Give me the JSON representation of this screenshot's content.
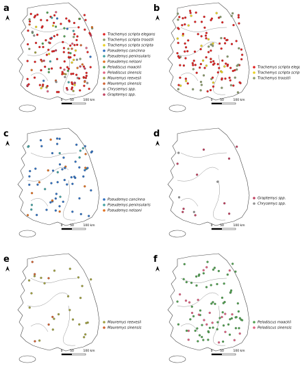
{
  "panels": [
    {
      "label": "a",
      "scale": [
        "0",
        "50",
        "100 km"
      ],
      "legend": [
        {
          "name": "Trachemys scripta elegans",
          "color": "#e02020"
        },
        {
          "name": "Trachemys scripta troostii",
          "color": "#8a9a6a"
        },
        {
          "name": "Trachemys scripta scripta",
          "color": "#e8d020"
        },
        {
          "name": "Pseudemys concinna",
          "color": "#3070c0"
        },
        {
          "name": "Pseudemys peninsularis",
          "color": "#40a0a0"
        },
        {
          "name": "Pseudemys nelsoni",
          "color": "#e07020"
        },
        {
          "name": "Pelodiscus maackii",
          "color": "#50a050"
        },
        {
          "name": "Pelodiscus sinensis",
          "color": "#e06080"
        },
        {
          "name": "Mauremys reevesii",
          "color": "#a0a040"
        },
        {
          "name": "Mauremys sinensis",
          "color": "#d06030"
        },
        {
          "name": "Chrysemys spp.",
          "color": "#909090"
        },
        {
          "name": "Graptemys spp.",
          "color": "#c04060"
        }
      ]
    },
    {
      "label": "b",
      "scale": [
        "0",
        "50",
        "100 km"
      ],
      "legend": [
        {
          "name": "Trachemys scripta elegans",
          "color": "#e02020"
        },
        {
          "name": "Trachemys scripta scripta",
          "color": "#e8d020"
        },
        {
          "name": "Trachemys troostii",
          "color": "#8a9a6a"
        }
      ]
    },
    {
      "label": "c",
      "scale": [
        "0",
        "50",
        "100 km"
      ],
      "legend": [
        {
          "name": "Pseudemys concinna",
          "color": "#3070c0"
        },
        {
          "name": "Pseudemys peninsularis",
          "color": "#40a0a0"
        },
        {
          "name": "Pseudemys nelsoni",
          "color": "#e07020"
        }
      ]
    },
    {
      "label": "d",
      "scale": [
        "0",
        "50",
        "100 km"
      ],
      "legend": [
        {
          "name": "Graptemys spp.",
          "color": "#c04060"
        },
        {
          "name": "Chrysemys spp.",
          "color": "#909090"
        }
      ]
    },
    {
      "label": "e",
      "scale": [
        "0",
        "50",
        "100 km"
      ],
      "legend": [
        {
          "name": "Mauremys reevesii",
          "color": "#a0a040"
        },
        {
          "name": "Mauremys sinensis",
          "color": "#d06030"
        }
      ]
    },
    {
      "label": "f",
      "scale": [
        "0",
        "50",
        "100 km"
      ],
      "legend": [
        {
          "name": "Pelodiscus maackii",
          "color": "#50a050"
        },
        {
          "name": "Pelodiscus sinensis",
          "color": "#e06080"
        }
      ]
    }
  ]
}
